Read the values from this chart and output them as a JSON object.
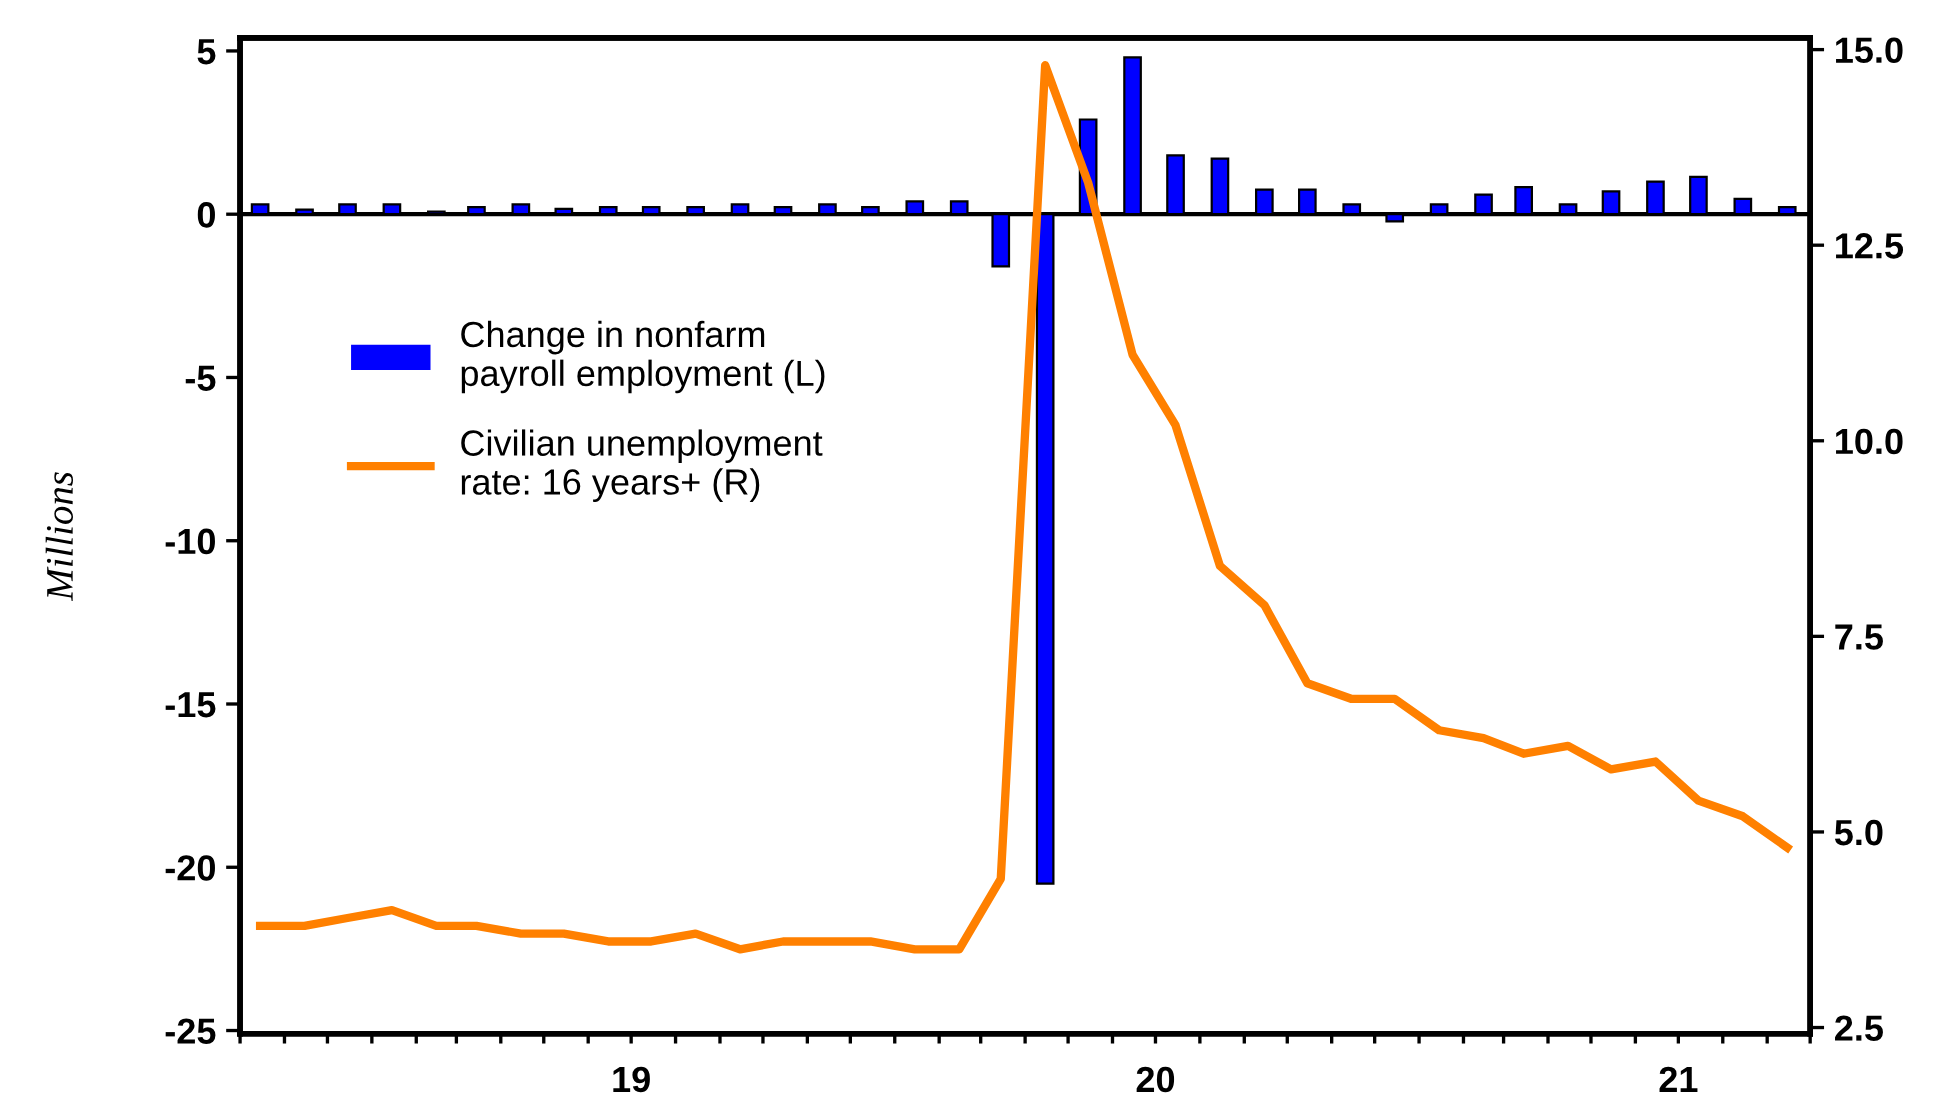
{
  "chart_data": {
    "type": "bar",
    "ylabel": "Millions",
    "x": [
      "2018-10-15",
      "2018-11-15",
      "2018-12-15",
      "2019-01-15",
      "2019-02-15",
      "2019-03-15",
      "2019-04-15",
      "2019-05-15",
      "2019-06-15",
      "2019-07-15",
      "2019-08-15",
      "2019-09-15",
      "2019-10-15",
      "2019-11-15",
      "2019-12-15",
      "2020-01-15",
      "2020-02-15",
      "2020-03-15",
      "2020-04-15",
      "2020-05-15",
      "2020-06-15",
      "2020-07-15",
      "2020-08-15",
      "2020-09-15",
      "2020-10-15",
      "2020-11-15",
      "2020-12-15",
      "2021-01-15",
      "2021-02-15",
      "2021-03-15",
      "2021-04-15",
      "2021-05-15",
      "2021-06-15",
      "2021-07-15",
      "2021-08-15",
      "2021-09-15"
    ],
    "series": [
      {
        "name": "Change in nonfarm\npayroll employment (L)",
        "color": "#0000ff",
        "values": [
          0.3,
          0.14,
          0.3,
          0.3,
          0.08,
          0.22,
          0.3,
          0.16,
          0.22,
          0.22,
          0.22,
          0.3,
          0.22,
          0.3,
          0.22,
          0.39,
          0.39,
          -1.6,
          -20.5,
          2.9,
          4.8,
          1.8,
          1.7,
          0.75,
          0.75,
          0.3,
          -0.22,
          0.3,
          0.6,
          0.83,
          0.3,
          0.7,
          1.0,
          1.14,
          0.47,
          0.22
        ]
      },
      {
        "name": "Civilian unemployment\nrate: 16 years+ (R)",
        "type": "line",
        "axis": "y2",
        "color": "#ff8000",
        "values": [
          3.8,
          3.8,
          3.9,
          4.0,
          3.8,
          3.8,
          3.7,
          3.7,
          3.6,
          3.6,
          3.7,
          3.5,
          3.6,
          3.6,
          3.6,
          3.5,
          3.5,
          4.4,
          14.8,
          13.3,
          11.1,
          10.2,
          8.4,
          7.9,
          6.9,
          6.7,
          6.7,
          6.3,
          6.2,
          6.0,
          6.1,
          5.8,
          5.9,
          5.4,
          5.2,
          4.8
        ]
      }
    ],
    "xlim": [
      "2018-10-01",
      "2021-10-01"
    ],
    "xticks": [
      {
        "value": "2018-10-01",
        "label": null
      },
      {
        "value": "2018-11-01",
        "label": null
      },
      {
        "value": "2018-12-01",
        "label": null
      },
      {
        "value": "2019-01-01",
        "label": null
      },
      {
        "value": "2019-02-01",
        "label": null
      },
      {
        "value": "2019-03-01",
        "label": null
      },
      {
        "value": "2019-04-01",
        "label": null
      },
      {
        "value": "2019-05-01",
        "label": null
      },
      {
        "value": "2019-06-01",
        "label": null
      },
      {
        "value": "2019-07-01",
        "label": "19"
      },
      {
        "value": "2019-08-01",
        "label": null
      },
      {
        "value": "2019-09-01",
        "label": null
      },
      {
        "value": "2019-10-01",
        "label": null
      },
      {
        "value": "2019-11-01",
        "label": null
      },
      {
        "value": "2019-12-01",
        "label": null
      },
      {
        "value": "2020-01-01",
        "label": null
      },
      {
        "value": "2020-02-01",
        "label": null
      },
      {
        "value": "2020-03-01",
        "label": null
      },
      {
        "value": "2020-04-01",
        "label": null
      },
      {
        "value": "2020-05-01",
        "label": null
      },
      {
        "value": "2020-06-01",
        "label": null
      },
      {
        "value": "2020-07-01",
        "label": "20"
      },
      {
        "value": "2020-08-01",
        "label": null
      },
      {
        "value": "2020-09-01",
        "label": null
      },
      {
        "value": "2020-10-01",
        "label": null
      },
      {
        "value": "2020-11-01",
        "label": null
      },
      {
        "value": "2020-12-01",
        "label": null
      },
      {
        "value": "2021-01-01",
        "label": null
      },
      {
        "value": "2021-02-01",
        "label": null
      },
      {
        "value": "2021-03-01",
        "label": null
      },
      {
        "value": "2021-04-01",
        "label": null
      },
      {
        "value": "2021-05-01",
        "label": null
      },
      {
        "value": "2021-06-01",
        "label": null
      },
      {
        "value": "2021-07-01",
        "label": "21"
      },
      {
        "value": "2021-08-01",
        "label": null
      },
      {
        "value": "2021-09-01",
        "label": null
      },
      {
        "value": "2021-10-01",
        "label": null
      }
    ],
    "ylim": [
      -25.1,
      5.4
    ],
    "yticks": [
      5,
      0,
      -5,
      -10,
      -15,
      -20,
      -25
    ],
    "y2lim": [
      2.42,
      15.15
    ],
    "y2ticks": [
      {
        "value": 2.5,
        "label": "2.5"
      },
      {
        "value": 5,
        "label": "5.0"
      },
      {
        "value": 7.5,
        "label": "7.5"
      },
      {
        "value": 10,
        "label": "10.0"
      },
      {
        "value": 12.5,
        "label": "12.5"
      },
      {
        "value": 15,
        "label": "15.0"
      }
    ],
    "ref_lines": [
      {
        "axis": "y",
        "value": 0,
        "color": "#000000"
      }
    ],
    "legend": "center left",
    "grid": false
  }
}
